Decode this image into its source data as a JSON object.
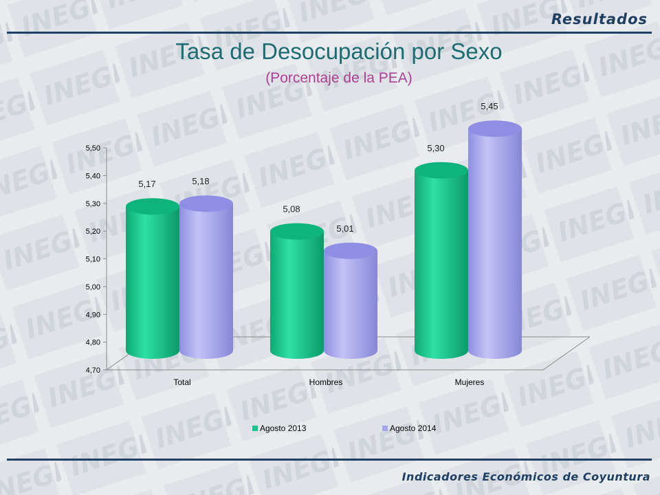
{
  "header": {
    "section": "Resultados"
  },
  "footer": {
    "text": "Indicadores Económicos de Coyuntura"
  },
  "colors": {
    "series1": "#19c78e",
    "series2": "#a9a8ee",
    "rule": "#1f3f63",
    "title": "#1d6b73",
    "subtitle": "#ad3f94"
  },
  "chart_data": {
    "type": "bar",
    "title": "Tasa de Desocupación por Sexo",
    "subtitle": "(Porcentaje de la PEA)",
    "categories": [
      "Total",
      "Hombres",
      "Mujeres"
    ],
    "series": [
      {
        "name": "Agosto  2013",
        "values": [
          5.17,
          5.08,
          5.3
        ],
        "labels": [
          "5,17",
          "5,08",
          "5,30"
        ]
      },
      {
        "name": "Agosto  2014",
        "values": [
          5.18,
          5.01,
          5.45
        ],
        "labels": [
          "5,18",
          "5,01",
          "5,45"
        ]
      }
    ],
    "ylim": [
      4.7,
      5.5
    ],
    "yticks": [
      "4,70",
      "4,80",
      "4,90",
      "5,00",
      "5,10",
      "5,20",
      "5,30",
      "5,40",
      "5,50"
    ],
    "grid": false,
    "legend": "bottom"
  }
}
